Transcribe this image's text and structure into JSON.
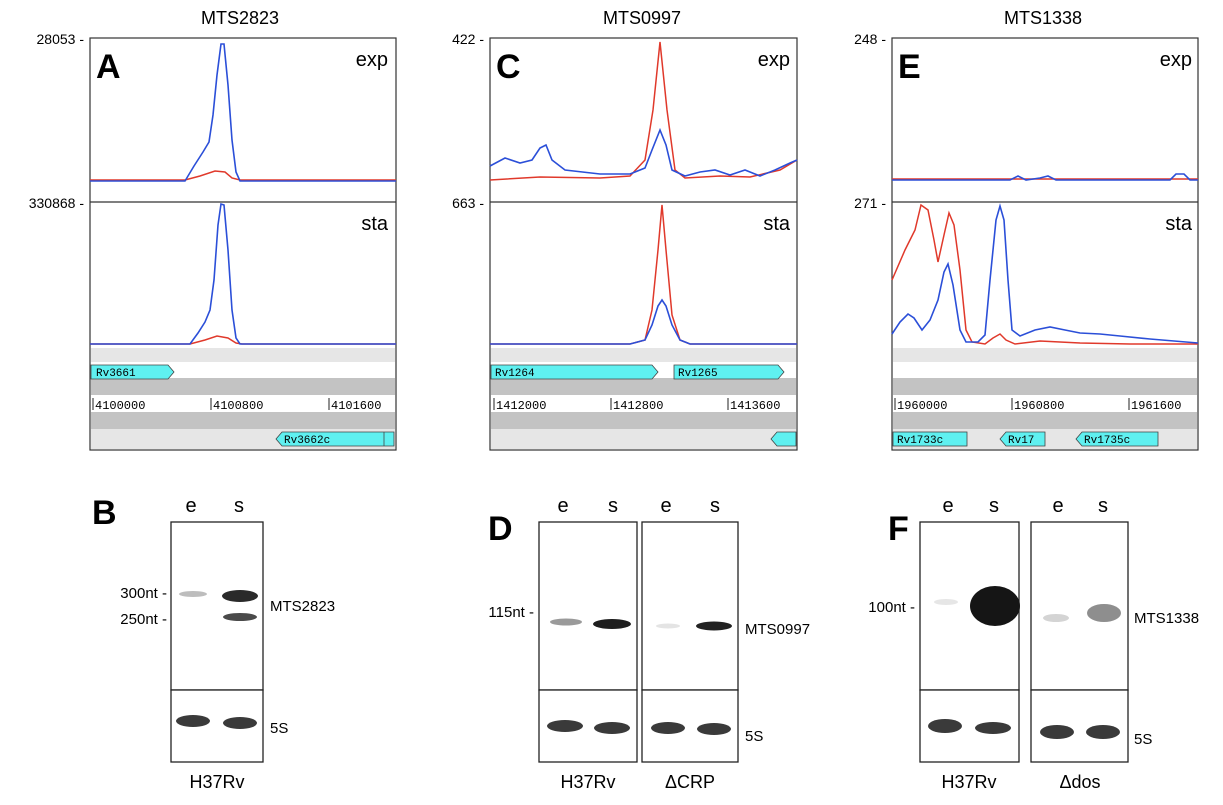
{
  "panels": {
    "A": {
      "letter": "A",
      "title": "MTS2823",
      "exp_max": "28053 -",
      "sta_max": "330868 -",
      "exp_label": "exp",
      "sta_label": "sta",
      "genes_top": [
        "Rv3661"
      ],
      "genes_bottom": [
        "Rv3662c"
      ],
      "ruler": [
        "4100000",
        "4100800",
        "4101600"
      ]
    },
    "C": {
      "letter": "C",
      "title": "MTS0997",
      "exp_max": "422 -",
      "sta_max": "663 -",
      "exp_label": "exp",
      "sta_label": "sta",
      "genes_top": [
        "Rv1264",
        "Rv1265"
      ],
      "genes_bottom": [],
      "ruler": [
        "1412000",
        "1412800",
        "1413600"
      ]
    },
    "E": {
      "letter": "E",
      "title": "MTS1338",
      "exp_max": "248 -",
      "sta_max": "271 -",
      "exp_label": "exp",
      "sta_label": "sta",
      "genes_top": [],
      "genes_bottom": [
        "Rv1733c",
        "Rv17",
        "Rv1735c"
      ],
      "ruler": [
        "1960000",
        "1960800",
        "1961600"
      ]
    }
  },
  "blots": {
    "B": {
      "letter": "B",
      "lanes": [
        "e",
        "s"
      ],
      "markers": [
        "300nt -",
        "250nt -"
      ],
      "rna": "MTS2823",
      "loading": "5S",
      "strains": [
        "H37Rv"
      ]
    },
    "D": {
      "letter": "D",
      "lanes": [
        "e",
        "s",
        "e",
        "s"
      ],
      "markers": [
        "115nt -"
      ],
      "rna": "MTS0997",
      "loading": "5S",
      "strains": [
        "H37Rv",
        "ΔCRP"
      ]
    },
    "F": {
      "letter": "F",
      "lanes": [
        "e",
        "s",
        "e",
        "s"
      ],
      "markers": [
        "100nt -"
      ],
      "rna": "MTS1338",
      "loading": "5S",
      "strains": [
        "H37Rv",
        "Δdos"
      ]
    }
  },
  "colors": {
    "expression_line_1": "#2b4fd8",
    "expression_line_2": "#e0392b",
    "gene_fill": "#5ff0f0",
    "band": "#2a2a2a"
  }
}
